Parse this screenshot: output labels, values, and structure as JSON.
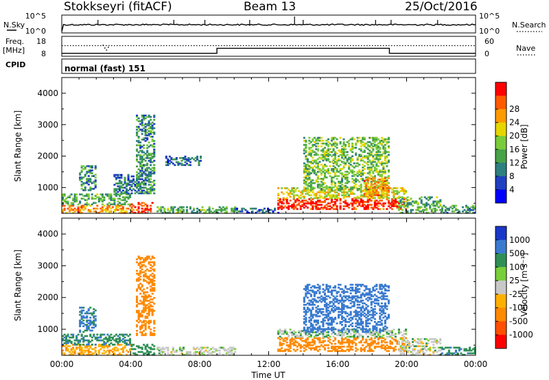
{
  "header": {
    "station": "Stokkseyri (fitACF)",
    "beam": "Beam 13",
    "date": "25/Oct/2016"
  },
  "labels": {
    "nsky": "N.Sky",
    "nsearch": "N.Search",
    "freq_line1": "Freq.",
    "freq_line2": "[MHz]",
    "nave": "Nave",
    "cpid": "CPID",
    "cpid_value": "normal (fast) 151",
    "xlabel": "Time UT",
    "ylabel": "Slant Range [km]",
    "power_cbar": "Power [dB]",
    "velocity_cbar": "Velocity [m s⁻¹]"
  },
  "colors": {
    "power_scale": [
      "#0000ff",
      "#2040c0",
      "#2e7f7f",
      "#48a248",
      "#7acc3a",
      "#e6d600",
      "#ff9a00",
      "#ff5a00",
      "#ff0000"
    ],
    "velocity_scale": [
      "#1a38c8",
      "#3a7bd0",
      "#2f8f55",
      "#78cf3a",
      "#c8c8c8",
      "#ffb000",
      "#ff8a00",
      "#ff5000",
      "#ff0000"
    ],
    "panel_border": "#000000",
    "lines": "#000000"
  },
  "chart_data": [
    {
      "type": "line",
      "panel": "sky-search-noise",
      "y_tick_labels_left": [
        "10^5",
        "10^0"
      ],
      "y_tick_labels_right": [
        "10^5",
        "10^0"
      ],
      "x_range_hours": [
        0,
        24
      ],
      "series": [
        {
          "name": "N.Sky",
          "style": "solid",
          "level_description": "mostly ~10^1.5 with sporadic spikes",
          "spikes_hours": [
            2.1,
            6.5,
            8.3,
            10.9,
            13.5,
            14.0,
            18.2,
            19.1,
            21.8
          ]
        },
        {
          "name": "N.Search",
          "style": "dotted",
          "level_description": "near baseline"
        }
      ]
    },
    {
      "type": "line",
      "panel": "frequency-nave",
      "y_tick_labels_left": [
        "18",
        "8"
      ],
      "y_tick_labels_right": [
        "60",
        "0"
      ],
      "freq_ylim_mhz": [
        8,
        18
      ],
      "nave_ylim": [
        0,
        60
      ],
      "series": [
        {
          "name": "Freq.",
          "style": "solid",
          "x_hours": [
            0,
            9.0,
            9.0,
            19.0,
            19.0,
            24
          ],
          "y_mhz": [
            9.5,
            9.5,
            12.0,
            12.0,
            9.5,
            9.5
          ]
        },
        {
          "name": "Nave",
          "style": "dotted",
          "x_hours": [
            0,
            24
          ],
          "y": [
            28,
            28
          ]
        }
      ]
    },
    {
      "type": "heatmap",
      "panel": "power",
      "xlabel": "",
      "ylabel": "Slant Range [km]",
      "x_tick_labels": [
        "00:00",
        "04:00",
        "08:00",
        "12:00",
        "16:00",
        "20:00",
        "00:00"
      ],
      "xlim_hours": [
        0,
        24
      ],
      "y_ticks": [
        1000,
        2000,
        3000,
        4000
      ],
      "ylim_km": [
        180,
        4500
      ],
      "colorbar": {
        "label": "Power [dB]",
        "ticks": [
          "4",
          "8",
          "12",
          "16",
          "20",
          "24",
          "28"
        ],
        "range": [
          0,
          30
        ]
      },
      "regions": [
        {
          "t": [
            0.0,
            4.0
          ],
          "r": [
            180,
            450
          ],
          "value": 22
        },
        {
          "t": [
            0.0,
            4.0
          ],
          "r": [
            450,
            800
          ],
          "value": 12
        },
        {
          "t": [
            1.0,
            2.0
          ],
          "r": [
            900,
            1700
          ],
          "value": 10
        },
        {
          "t": [
            3.0,
            4.5
          ],
          "r": [
            800,
            1400
          ],
          "value": 8
        },
        {
          "t": [
            4.0,
            5.2
          ],
          "r": [
            180,
            500
          ],
          "value": 26
        },
        {
          "t": [
            4.3,
            5.3
          ],
          "r": [
            800,
            3300
          ],
          "value": 10
        },
        {
          "t": [
            5.5,
            10.0
          ],
          "r": [
            180,
            400
          ],
          "value": 12
        },
        {
          "t": [
            6.0,
            8.0
          ],
          "r": [
            1700,
            2000
          ],
          "value": 8
        },
        {
          "t": [
            10.0,
            12.5
          ],
          "r": [
            180,
            350
          ],
          "value": 6
        },
        {
          "t": [
            12.5,
            20.0
          ],
          "r": [
            300,
            650
          ],
          "value": 28
        },
        {
          "t": [
            12.5,
            20.0
          ],
          "r": [
            650,
            1000
          ],
          "value": 18
        },
        {
          "t": [
            14.0,
            19.0
          ],
          "r": [
            900,
            2600
          ],
          "value": 14
        },
        {
          "t": [
            17.5,
            19.0
          ],
          "r": [
            700,
            1300
          ],
          "value": 22
        },
        {
          "t": [
            19.5,
            22.0
          ],
          "r": [
            180,
            700
          ],
          "value": 12
        },
        {
          "t": [
            22.0,
            24.0
          ],
          "r": [
            180,
            450
          ],
          "value": 10
        }
      ]
    },
    {
      "type": "heatmap",
      "panel": "velocity",
      "xlabel": "Time UT",
      "ylabel": "Slant Range [km]",
      "x_tick_labels": [
        "00:00",
        "04:00",
        "08:00",
        "12:00",
        "16:00",
        "20:00",
        "00:00"
      ],
      "xlim_hours": [
        0,
        24
      ],
      "y_ticks": [
        1000,
        2000,
        3000,
        4000
      ],
      "ylim_km": [
        180,
        4500
      ],
      "colorbar": {
        "label": "Velocity [m s⁻¹]",
        "ticks": [
          "1000",
          "500",
          "100",
          "25",
          "-25",
          "-100",
          "-500",
          "-1000"
        ]
      },
      "regions": [
        {
          "t": [
            0.0,
            4.0
          ],
          "r": [
            180,
            500
          ],
          "value": -80
        },
        {
          "t": [
            0.0,
            4.0
          ],
          "r": [
            500,
            850
          ],
          "value": 80
        },
        {
          "t": [
            1.0,
            2.0
          ],
          "r": [
            900,
            1700
          ],
          "value": 120
        },
        {
          "t": [
            4.0,
            5.3
          ],
          "r": [
            180,
            500
          ],
          "value": 60
        },
        {
          "t": [
            4.3,
            5.3
          ],
          "r": [
            800,
            3300
          ],
          "value": -300
        },
        {
          "t": [
            5.5,
            10.0
          ],
          "r": [
            180,
            450
          ],
          "value": 0
        },
        {
          "t": [
            12.5,
            20.0
          ],
          "r": [
            300,
            750
          ],
          "value": -300
        },
        {
          "t": [
            12.5,
            20.0
          ],
          "r": [
            750,
            1000
          ],
          "value": 10
        },
        {
          "t": [
            14.0,
            19.0
          ],
          "r": [
            900,
            2400
          ],
          "value": 300
        },
        {
          "t": [
            19.5,
            22.0
          ],
          "r": [
            180,
            700
          ],
          "value": 0
        },
        {
          "t": [
            22.0,
            24.0
          ],
          "r": [
            180,
            450
          ],
          "value": 80
        }
      ]
    }
  ]
}
